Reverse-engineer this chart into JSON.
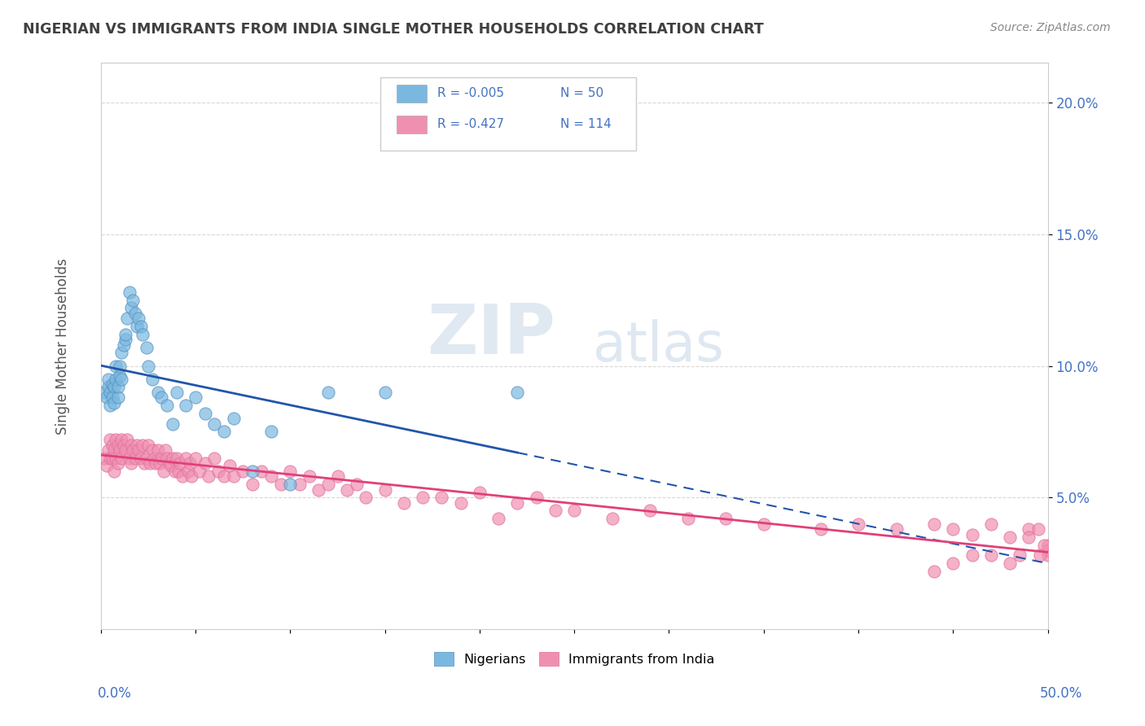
{
  "title": "NIGERIAN VS IMMIGRANTS FROM INDIA SINGLE MOTHER HOUSEHOLDS CORRELATION CHART",
  "source": "Source: ZipAtlas.com",
  "ylabel": "Single Mother Households",
  "legend_stats": [
    {
      "r": "R = -0.005",
      "n": "N = 50",
      "color": "#a8c8e8"
    },
    {
      "r": "R = -0.427",
      "n": "N = 114",
      "color": "#f4a0b8"
    }
  ],
  "watermark_zip": "ZIP",
  "watermark_atlas": "atlas",
  "xlim": [
    0.0,
    0.5
  ],
  "ylim": [
    0.0,
    0.215
  ],
  "yticks": [
    0.05,
    0.1,
    0.15,
    0.2
  ],
  "ytick_labels": [
    "5.0%",
    "10.0%",
    "15.0%",
    "20.0%"
  ],
  "background_color": "#ffffff",
  "grid_color": "#d8d8d8",
  "axis_label_color": "#4472c4",
  "title_color": "#404040",
  "nigerian_color": "#7ab8e0",
  "nigerian_trend_color": "#2255aa",
  "india_color": "#f090b0",
  "india_trend_color": "#e0407a",
  "nigerian_x": [
    0.002,
    0.003,
    0.004,
    0.004,
    0.005,
    0.005,
    0.006,
    0.006,
    0.007,
    0.007,
    0.008,
    0.008,
    0.009,
    0.009,
    0.01,
    0.01,
    0.011,
    0.011,
    0.012,
    0.013,
    0.013,
    0.014,
    0.015,
    0.016,
    0.017,
    0.018,
    0.019,
    0.02,
    0.021,
    0.022,
    0.024,
    0.025,
    0.027,
    0.03,
    0.032,
    0.035,
    0.038,
    0.04,
    0.045,
    0.05,
    0.055,
    0.06,
    0.065,
    0.07,
    0.08,
    0.09,
    0.1,
    0.12,
    0.15,
    0.22
  ],
  "nigerian_y": [
    0.09,
    0.088,
    0.092,
    0.095,
    0.085,
    0.09,
    0.093,
    0.088,
    0.092,
    0.086,
    0.095,
    0.1,
    0.088,
    0.092,
    0.096,
    0.1,
    0.105,
    0.095,
    0.108,
    0.11,
    0.112,
    0.118,
    0.128,
    0.122,
    0.125,
    0.12,
    0.115,
    0.118,
    0.115,
    0.112,
    0.107,
    0.1,
    0.095,
    0.09,
    0.088,
    0.085,
    0.078,
    0.09,
    0.085,
    0.088,
    0.082,
    0.078,
    0.075,
    0.08,
    0.06,
    0.075,
    0.055,
    0.09,
    0.09,
    0.09
  ],
  "india_x": [
    0.002,
    0.003,
    0.004,
    0.005,
    0.005,
    0.006,
    0.006,
    0.007,
    0.007,
    0.008,
    0.008,
    0.009,
    0.009,
    0.01,
    0.011,
    0.011,
    0.012,
    0.013,
    0.014,
    0.015,
    0.016,
    0.016,
    0.017,
    0.018,
    0.019,
    0.02,
    0.021,
    0.022,
    0.023,
    0.024,
    0.025,
    0.026,
    0.027,
    0.028,
    0.029,
    0.03,
    0.031,
    0.032,
    0.033,
    0.034,
    0.035,
    0.036,
    0.037,
    0.038,
    0.039,
    0.04,
    0.041,
    0.042,
    0.043,
    0.045,
    0.046,
    0.047,
    0.048,
    0.05,
    0.052,
    0.055,
    0.057,
    0.06,
    0.062,
    0.065,
    0.068,
    0.07,
    0.075,
    0.08,
    0.085,
    0.09,
    0.095,
    0.1,
    0.105,
    0.11,
    0.115,
    0.12,
    0.125,
    0.13,
    0.135,
    0.14,
    0.15,
    0.16,
    0.17,
    0.18,
    0.19,
    0.2,
    0.21,
    0.22,
    0.23,
    0.24,
    0.25,
    0.27,
    0.29,
    0.31,
    0.33,
    0.35,
    0.38,
    0.4,
    0.42,
    0.44,
    0.45,
    0.46,
    0.47,
    0.48,
    0.49,
    0.49,
    0.495,
    0.5,
    0.5,
    0.5,
    0.498,
    0.496,
    0.485,
    0.48,
    0.47,
    0.46,
    0.45,
    0.44
  ],
  "india_y": [
    0.065,
    0.062,
    0.068,
    0.072,
    0.065,
    0.07,
    0.065,
    0.068,
    0.06,
    0.072,
    0.065,
    0.07,
    0.063,
    0.068,
    0.072,
    0.065,
    0.07,
    0.068,
    0.072,
    0.065,
    0.07,
    0.063,
    0.068,
    0.065,
    0.07,
    0.068,
    0.065,
    0.07,
    0.063,
    0.065,
    0.07,
    0.063,
    0.068,
    0.065,
    0.063,
    0.068,
    0.063,
    0.065,
    0.06,
    0.068,
    0.065,
    0.063,
    0.062,
    0.065,
    0.06,
    0.065,
    0.06,
    0.063,
    0.058,
    0.065,
    0.06,
    0.063,
    0.058,
    0.065,
    0.06,
    0.063,
    0.058,
    0.065,
    0.06,
    0.058,
    0.062,
    0.058,
    0.06,
    0.055,
    0.06,
    0.058,
    0.055,
    0.06,
    0.055,
    0.058,
    0.053,
    0.055,
    0.058,
    0.053,
    0.055,
    0.05,
    0.053,
    0.048,
    0.05,
    0.05,
    0.048,
    0.052,
    0.042,
    0.048,
    0.05,
    0.045,
    0.045,
    0.042,
    0.045,
    0.042,
    0.042,
    0.04,
    0.038,
    0.04,
    0.038,
    0.04,
    0.038,
    0.036,
    0.04,
    0.035,
    0.038,
    0.035,
    0.038,
    0.032,
    0.028,
    0.03,
    0.032,
    0.028,
    0.028,
    0.025,
    0.028,
    0.028,
    0.025,
    0.022
  ]
}
